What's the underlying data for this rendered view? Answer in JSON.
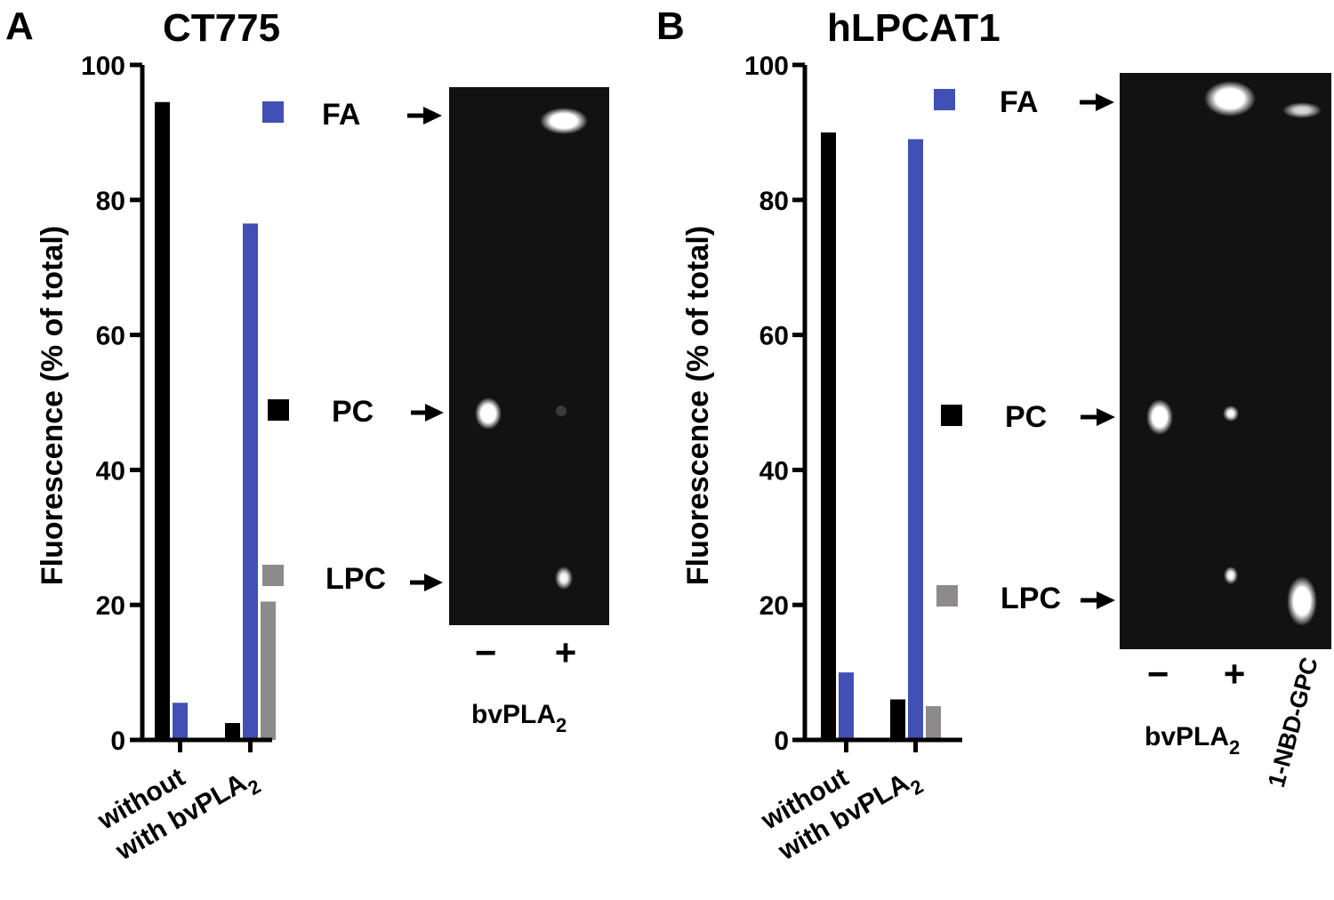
{
  "panels": [
    {
      "letter": "A",
      "title": "CT775",
      "ylabel": "Fluorescence (% of total)",
      "yticks": [
        "0",
        "20",
        "40",
        "60",
        "80",
        "100"
      ],
      "categories": [
        "without",
        "with bvPLA",
        "2"
      ],
      "legend": [
        {
          "label": "FA",
          "color": "#4050b5"
        },
        {
          "label": "PC",
          "color": "#000000"
        },
        {
          "label": "LPC",
          "color": "#8c8a8a"
        }
      ],
      "gel": {
        "lanes": [
          "−",
          "+"
        ],
        "caption": "bvPLA",
        "caption_sub": "2"
      }
    },
    {
      "letter": "B",
      "title": "hLPCAT1",
      "ylabel": "Fluorescence (% of total)",
      "yticks": [
        "0",
        "20",
        "40",
        "60",
        "80",
        "100"
      ],
      "categories": [
        "without",
        "with bvPLA",
        "2"
      ],
      "legend": [
        {
          "label": "FA",
          "color": "#4050b5"
        },
        {
          "label": "PC",
          "color": "#000000"
        },
        {
          "label": "LPC",
          "color": "#8c8a8a"
        }
      ],
      "gel": {
        "lanes": [
          "−",
          "+"
        ],
        "extra_lane": "1-NBD-GPC",
        "caption": "bvPLA",
        "caption_sub": "2"
      }
    }
  ],
  "chart_data": [
    {
      "type": "bar",
      "title": "CT775",
      "xlabel": "",
      "ylabel": "Fluorescence (% of total)",
      "ylim": [
        0,
        100
      ],
      "categories": [
        "without bvPLA2",
        "with bvPLA2"
      ],
      "series": [
        {
          "name": "PC",
          "color": "#000000",
          "values": [
            94.5,
            2.5
          ]
        },
        {
          "name": "FA",
          "color": "#4050b5",
          "values": [
            5.5,
            76.5
          ]
        },
        {
          "name": "LPC",
          "color": "#8c8a8a",
          "values": [
            0,
            20.5
          ]
        }
      ]
    },
    {
      "type": "bar",
      "title": "hLPCAT1",
      "xlabel": "",
      "ylabel": "Fluorescence (% of total)",
      "ylim": [
        0,
        100
      ],
      "categories": [
        "without bvPLA2",
        "with bvPLA2"
      ],
      "series": [
        {
          "name": "PC",
          "color": "#000000",
          "values": [
            90,
            6
          ]
        },
        {
          "name": "FA",
          "color": "#4050b5",
          "values": [
            10,
            89
          ]
        },
        {
          "name": "LPC",
          "color": "#8c8a8a",
          "values": [
            0,
            5
          ]
        }
      ]
    }
  ]
}
